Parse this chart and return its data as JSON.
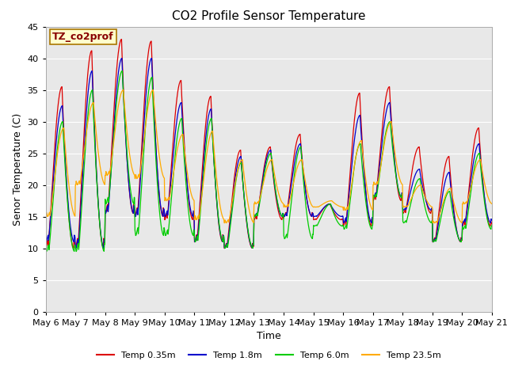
{
  "title": "CO2 Profile Sensor Temperature",
  "ylabel": "Senor Temperature (C)",
  "xlabel": "Time",
  "ylim": [
    0,
    45
  ],
  "yticks": [
    0,
    5,
    10,
    15,
    20,
    25,
    30,
    35,
    40,
    45
  ],
  "annotation_text": "TZ_co2prof",
  "annotation_bg": "#ffffcc",
  "annotation_border": "#aa7700",
  "plot_bg": "#e8e8e8",
  "grid_color": "white",
  "series": [
    {
      "label": "Temp 0.35m",
      "color": "#dd0000"
    },
    {
      "label": "Temp 1.8m",
      "color": "#0000cc"
    },
    {
      "label": "Temp 6.0m",
      "color": "#00cc00"
    },
    {
      "label": "Temp 23.5m",
      "color": "#ffaa00"
    }
  ],
  "x_tick_labels": [
    "May 6",
    "May 7",
    "May 8",
    "May 9",
    "May 10",
    "May 11",
    "May 12",
    "May 13",
    "May 14",
    "May 15",
    "May 16",
    "May 17",
    "May 18",
    "May 19",
    "May 20",
    "May 21"
  ],
  "title_fontsize": 11,
  "axis_label_fontsize": 9,
  "tick_fontsize": 8,
  "legend_fontsize": 8
}
